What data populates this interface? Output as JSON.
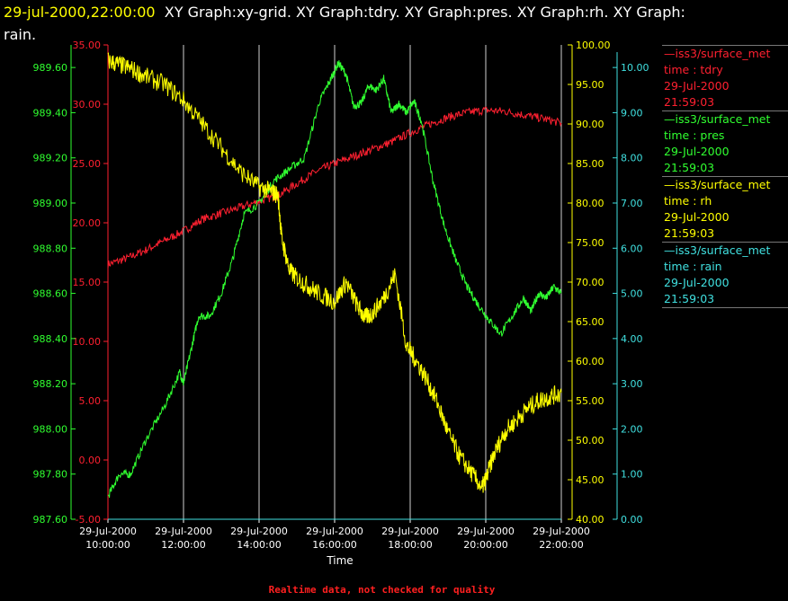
{
  "header": {
    "timestamp": "29-jul-2000,22:00:00",
    "titles": "XY Graph:xy-grid.  XY Graph:tdry.  XY Graph:pres.  XY Graph:rh.  XY Graph:",
    "titles_wrap": "rain."
  },
  "footer": {
    "quality_note": "Realtime data, not checked for quality"
  },
  "colors": {
    "tdry": "#ff2030",
    "pres": "#30ff30",
    "rh": "#ffff00",
    "rain": "#40e0e0",
    "grid": "#d0d0d0"
  },
  "legend": [
    {
      "line": "—iss3/surface_met",
      "field": "time : tdry",
      "date": "29-Jul-2000",
      "time": "21:59:03",
      "color": "#ff2030"
    },
    {
      "line": "—iss3/surface_met",
      "field": "time : pres",
      "date": "29-Jul-2000",
      "time": "21:59:03",
      "color": "#30ff30"
    },
    {
      "line": "—iss3/surface_met",
      "field": "time : rh",
      "date": "29-Jul-2000",
      "time": "21:59:03",
      "color": "#ffff00"
    },
    {
      "line": "—iss3/surface_met",
      "field": "time : rain",
      "date": "29-Jul-2000",
      "time": "21:59:03",
      "color": "#40e0e0"
    }
  ],
  "chart_data": {
    "type": "line",
    "xlabel": "Time",
    "x_ticks": [
      [
        "29-Jul-2000",
        "10:00:00"
      ],
      [
        "29-Jul-2000",
        "12:00:00"
      ],
      [
        "29-Jul-2000",
        "14:00:00"
      ],
      [
        "29-Jul-2000",
        "16:00:00"
      ],
      [
        "29-Jul-2000",
        "18:00:00"
      ],
      [
        "29-Jul-2000",
        "20:00:00"
      ],
      [
        "29-Jul-2000",
        "22:00:00"
      ]
    ],
    "x_hours_range": [
      10,
      22
    ],
    "grid_vertical": true,
    "axes": [
      {
        "id": "tdry",
        "color": "#ff2030",
        "range": [
          -5,
          35
        ],
        "ticks": [
          "-5.00",
          "0.00",
          "5.00",
          "10.00",
          "15.00",
          "20.00",
          "25.00",
          "30.00",
          "35.00"
        ]
      },
      {
        "id": "pres",
        "color": "#30ff30",
        "range": [
          987.6,
          989.7
        ],
        "ticks": [
          "987.60",
          "987.80",
          "988.00",
          "988.20",
          "988.40",
          "988.60",
          "988.80",
          "989.00",
          "989.20",
          "989.40",
          "989.60"
        ]
      },
      {
        "id": "rh",
        "color": "#ffff00",
        "range": [
          40,
          100
        ],
        "ticks": [
          "40.00",
          "45.00",
          "50.00",
          "55.00",
          "60.00",
          "65.00",
          "70.00",
          "75.00",
          "80.00",
          "85.00",
          "90.00",
          "95.00",
          "100.00"
        ]
      },
      {
        "id": "rain",
        "color": "#40e0e0",
        "range": [
          0,
          10.5
        ],
        "ticks": [
          "0.00",
          "1.00",
          "2.00",
          "3.00",
          "4.00",
          "5.00",
          "6.00",
          "7.00",
          "8.00",
          "9.00",
          "10.00"
        ]
      }
    ],
    "series": [
      {
        "name": "iss3/surface_met time : tdry",
        "axis": "tdry",
        "color": "#ff2030",
        "x": [
          10,
          10.5,
          11,
          11.5,
          12,
          12.5,
          13,
          13.5,
          14,
          14.5,
          15,
          15.5,
          16,
          16.5,
          17,
          17.5,
          18,
          18.5,
          19,
          19.5,
          20,
          20.5,
          21,
          21.5,
          22
        ],
        "y": [
          16.5,
          17.0,
          17.7,
          18.5,
          19.3,
          20.3,
          20.8,
          21.3,
          21.8,
          22.3,
          23.3,
          24.3,
          25.0,
          25.6,
          26.2,
          26.8,
          27.6,
          28.3,
          28.9,
          29.3,
          29.5,
          29.4,
          29.1,
          28.8,
          28.4
        ]
      },
      {
        "name": "iss3/surface_met time : pres",
        "axis": "pres",
        "color": "#30ff30",
        "x": [
          10,
          10.3,
          10.6,
          11,
          11.5,
          11.9,
          12,
          12.2,
          12.4,
          12.7,
          13,
          13.3,
          13.6,
          14,
          14.4,
          14.8,
          15.2,
          15.6,
          15.9,
          16.1,
          16.3,
          16.5,
          16.7,
          16.9,
          17.1,
          17.3,
          17.5,
          17.7,
          17.9,
          18.1,
          18.3,
          18.6,
          18.9,
          19.2,
          19.5,
          19.8,
          20.1,
          20.4,
          20.7,
          21,
          21.2,
          21.4,
          21.6,
          21.8,
          22
        ],
        "y": [
          987.7,
          987.8,
          987.8,
          987.95,
          988.1,
          988.25,
          988.2,
          988.35,
          988.5,
          988.5,
          988.6,
          988.75,
          988.95,
          989.0,
          989.1,
          989.15,
          989.2,
          989.45,
          989.55,
          989.62,
          989.57,
          989.43,
          989.44,
          989.52,
          989.5,
          989.55,
          989.4,
          989.44,
          989.4,
          989.45,
          989.36,
          989.1,
          988.9,
          988.75,
          988.63,
          988.55,
          988.48,
          988.42,
          988.5,
          988.58,
          988.52,
          988.6,
          988.58,
          988.63,
          988.6
        ]
      },
      {
        "name": "iss3/surface_met time : rh",
        "axis": "rh",
        "color": "#ffff00",
        "x": [
          10,
          10.3,
          10.6,
          11,
          11.5,
          12,
          12.5,
          13,
          13.5,
          14,
          14.3,
          14.5,
          14.6,
          14.8,
          15,
          15.3,
          15.6,
          16,
          16.3,
          16.6,
          16.8,
          17,
          17.3,
          17.6,
          17.9,
          18.1,
          18.4,
          18.7,
          19,
          19.3,
          19.6,
          19.9,
          20,
          20.2,
          20.5,
          20.8,
          21.1,
          21.4,
          21.7,
          22
        ],
        "y": [
          98.0,
          97.5,
          97.0,
          96.0,
          95.0,
          93.0,
          90.0,
          87.0,
          84.0,
          82.0,
          81.5,
          81.0,
          75.5,
          71.5,
          70.5,
          69.5,
          68.5,
          67.5,
          70.0,
          67.0,
          65.5,
          66.0,
          68.0,
          71.0,
          62.0,
          60.5,
          58.0,
          55.0,
          51.0,
          48.0,
          46.0,
          44.0,
          45.0,
          48.0,
          51.0,
          52.5,
          54.0,
          55.0,
          55.5,
          56.0
        ]
      },
      {
        "name": "iss3/surface_met time : rain",
        "axis": "rain",
        "color": "#40e0e0",
        "x": [
          10,
          22
        ],
        "y": [
          0.0,
          0.0
        ]
      }
    ]
  }
}
